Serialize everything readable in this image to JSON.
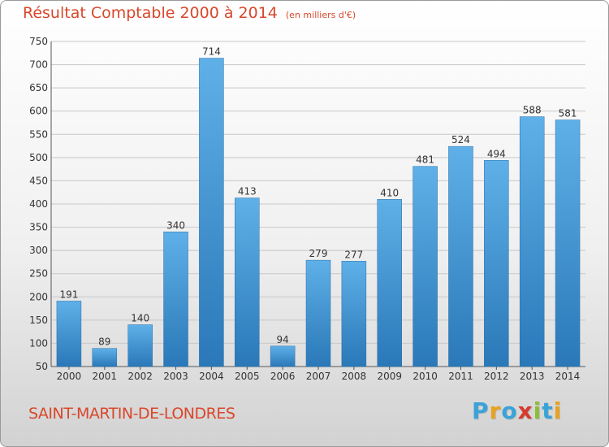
{
  "title": "Résultat Comptable 2000 à 2014",
  "unit_note": "(en milliers d'€)",
  "commune": "SAINT-MARTIN-DE-LONDRES",
  "logo": {
    "letters": [
      "P",
      "r",
      "o",
      "x",
      "i",
      "t",
      "i"
    ],
    "colors": [
      "#3aa3d8",
      "#e8a21e",
      "#3aa3d8",
      "#d63a2f",
      "#8bbf3a",
      "#3aa3d8",
      "#e8a21e"
    ]
  },
  "colors": {
    "accent": "#d9472b",
    "bar_light": "#5fb0e8",
    "bar_dark": "#2a78b8",
    "grid": "#c8c8c8"
  },
  "chart_data": {
    "type": "bar",
    "categories": [
      "2000",
      "2001",
      "2002",
      "2003",
      "2004",
      "2005",
      "2006",
      "2007",
      "2008",
      "2009",
      "2010",
      "2011",
      "2012",
      "2013",
      "2014"
    ],
    "values": [
      191,
      89,
      140,
      340,
      714,
      413,
      94,
      279,
      277,
      410,
      481,
      524,
      494,
      588,
      581
    ],
    "title": "Résultat Comptable 2000 à 2014",
    "xlabel": "",
    "ylabel": "",
    "ylim": [
      50,
      750
    ],
    "yticks": [
      50,
      100,
      150,
      200,
      250,
      300,
      350,
      400,
      450,
      500,
      550,
      600,
      650,
      700,
      750
    ],
    "grid": true,
    "data_labels": true
  }
}
